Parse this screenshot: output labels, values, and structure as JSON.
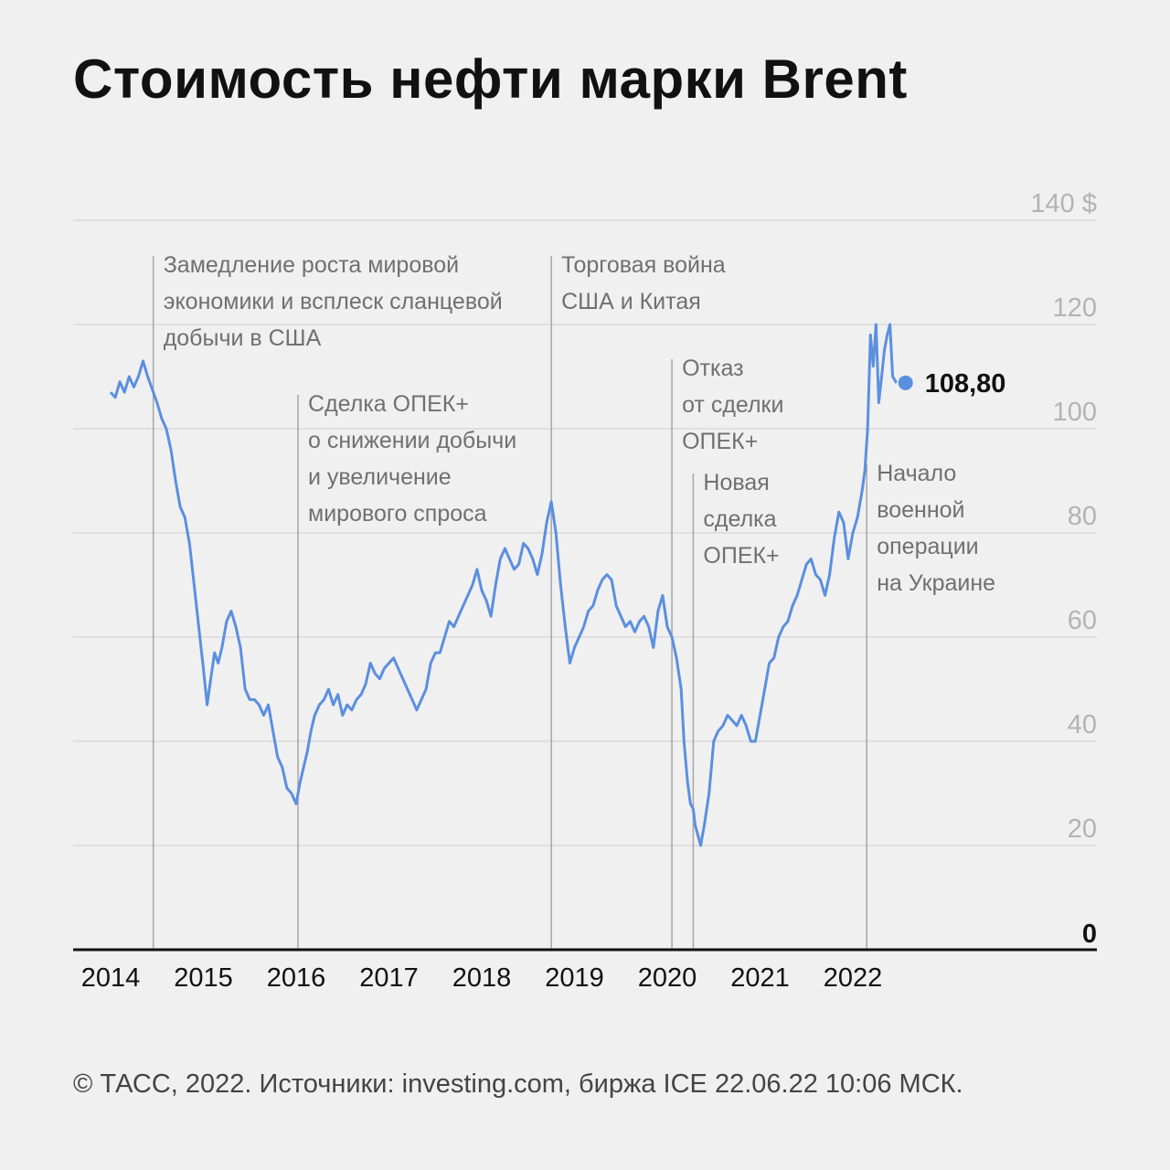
{
  "title": "Стоимость нефти марки Brent",
  "source": "© ТАСС, 2022. Источники: investing.com, биржа ICE 22.06.22 10:06 МСК.",
  "colors": {
    "line": "#5b8fe0",
    "grid": "#d9d9d9",
    "event_line": "#a6a6a6",
    "axis": "#111111"
  },
  "chart_data": {
    "type": "line",
    "ylim": [
      0,
      140
    ],
    "y_ticks": [
      {
        "value": 0,
        "label": "0"
      },
      {
        "value": 20,
        "label": "20"
      },
      {
        "value": 40,
        "label": "40"
      },
      {
        "value": 60,
        "label": "60"
      },
      {
        "value": 80,
        "label": "80"
      },
      {
        "value": 100,
        "label": "100"
      },
      {
        "value": 120,
        "label": "120"
      },
      {
        "value": 140,
        "label": "140 $"
      }
    ],
    "x_ticks": [
      {
        "value": 2014,
        "label": "2014"
      },
      {
        "value": 2015,
        "label": "2015"
      },
      {
        "value": 2016,
        "label": "2016"
      },
      {
        "value": 2017,
        "label": "2017"
      },
      {
        "value": 2018,
        "label": "2018"
      },
      {
        "value": 2019,
        "label": "2019"
      },
      {
        "value": 2020,
        "label": "2020"
      },
      {
        "value": 2021,
        "label": "2021"
      },
      {
        "value": 2022,
        "label": "2022"
      }
    ],
    "grid": true,
    "series": [
      {
        "x": [
          2014.0,
          2014.05,
          2014.1,
          2014.15,
          2014.2,
          2014.25,
          2014.3,
          2014.35,
          2014.4,
          2014.46,
          2014.5,
          2014.55,
          2014.6,
          2014.65,
          2014.7,
          2014.75,
          2014.8,
          2014.85,
          2014.9,
          2014.95,
          2015.0,
          2015.04,
          2015.08,
          2015.12,
          2015.16,
          2015.2,
          2015.25,
          2015.3,
          2015.35,
          2015.4,
          2015.45,
          2015.5,
          2015.55,
          2015.6,
          2015.65,
          2015.7,
          2015.75,
          2015.8,
          2015.85,
          2015.9,
          2015.95,
          2016.0,
          2016.04,
          2016.08,
          2016.12,
          2016.16,
          2016.2,
          2016.25,
          2016.3,
          2016.35,
          2016.4,
          2016.45,
          2016.5,
          2016.55,
          2016.6,
          2016.65,
          2016.7,
          2016.75,
          2016.8,
          2016.85,
          2016.9,
          2016.95,
          2017.0,
          2017.05,
          2017.1,
          2017.15,
          2017.2,
          2017.25,
          2017.3,
          2017.35,
          2017.4,
          2017.45,
          2017.5,
          2017.55,
          2017.6,
          2017.65,
          2017.7,
          2017.75,
          2017.8,
          2017.85,
          2017.9,
          2017.95,
          2018.0,
          2018.05,
          2018.1,
          2018.15,
          2018.2,
          2018.25,
          2018.3,
          2018.35,
          2018.4,
          2018.45,
          2018.5,
          2018.55,
          2018.6,
          2018.65,
          2018.7,
          2018.75,
          2018.8,
          2018.85,
          2018.9,
          2018.95,
          2019.0,
          2019.05,
          2019.1,
          2019.15,
          2019.2,
          2019.25,
          2019.3,
          2019.35,
          2019.4,
          2019.45,
          2019.5,
          2019.55,
          2019.6,
          2019.65,
          2019.7,
          2019.75,
          2019.8,
          2019.85,
          2019.9,
          2019.95,
          2020.0,
          2020.05,
          2020.1,
          2020.15,
          2020.18,
          2020.22,
          2020.25,
          2020.28,
          2020.3,
          2020.33,
          2020.36,
          2020.4,
          2020.45,
          2020.5,
          2020.55,
          2020.6,
          2020.65,
          2020.7,
          2020.75,
          2020.8,
          2020.85,
          2020.9,
          2020.95,
          2021.0,
          2021.05,
          2021.1,
          2021.15,
          2021.2,
          2021.25,
          2021.3,
          2021.35,
          2021.4,
          2021.45,
          2021.5,
          2021.55,
          2021.6,
          2021.65,
          2021.7,
          2021.75,
          2021.8,
          2021.85,
          2021.9,
          2021.95,
          2022.0,
          2022.05,
          2022.1,
          2022.13,
          2022.16,
          2022.19,
          2022.22,
          2022.25,
          2022.28,
          2022.31,
          2022.34,
          2022.37,
          2022.4,
          2022.43,
          2022.47
        ],
        "y": [
          107,
          106,
          109,
          107,
          110,
          108,
          110,
          113,
          110,
          107,
          105,
          102,
          100,
          96,
          90,
          85,
          83,
          78,
          70,
          62,
          54,
          47,
          52,
          57,
          55,
          58,
          63,
          65,
          62,
          58,
          50,
          48,
          48,
          47,
          45,
          47,
          42,
          37,
          35,
          31,
          30,
          28,
          32,
          35,
          38,
          42,
          45,
          47,
          48,
          50,
          47,
          49,
          45,
          47,
          46,
          48,
          49,
          51,
          55,
          53,
          52,
          54,
          55,
          56,
          54,
          52,
          50,
          48,
          46,
          48,
          50,
          55,
          57,
          57,
          60,
          63,
          62,
          64,
          66,
          68,
          70,
          73,
          69,
          67,
          64,
          70,
          75,
          77,
          75,
          73,
          74,
          78,
          77,
          75,
          72,
          76,
          82,
          86,
          80,
          70,
          62,
          55,
          58,
          60,
          62,
          65,
          66,
          69,
          71,
          72,
          71,
          66,
          64,
          62,
          63,
          61,
          63,
          64,
          62,
          58,
          65,
          68,
          62,
          60,
          56,
          50,
          40,
          32,
          28,
          27,
          24,
          22,
          20,
          24,
          30,
          40,
          42,
          43,
          45,
          44,
          43,
          45,
          43,
          40,
          40,
          45,
          50,
          55,
          56,
          60,
          62,
          63,
          66,
          68,
          71,
          74,
          75,
          72,
          71,
          68,
          72,
          79,
          84,
          82,
          75,
          80,
          83,
          88,
          92,
          100,
          118,
          112,
          120,
          105,
          110,
          115,
          118,
          120,
          110,
          108.8
        ]
      }
    ],
    "last_value": {
      "x": 2022.47,
      "y": 108.8,
      "label": "108,80"
    },
    "annotations": [
      {
        "x": 2014.46,
        "lines": [
          "Замедление роста мировой",
          "экономики и всплеск сланцевой",
          "добычи в США"
        ]
      },
      {
        "x": 2016.02,
        "lines": [
          "Сделка ОПЕК+",
          "о снижении добычи",
          "и увеличение",
          "мирового спроса"
        ]
      },
      {
        "x": 2018.75,
        "lines": [
          "Торговая война",
          "США и Китая"
        ]
      },
      {
        "x": 2020.05,
        "lines": [
          "Отказ",
          "от сделки",
          "ОПЕК+"
        ]
      },
      {
        "x": 2020.28,
        "lines": [
          "Новая",
          "сделка",
          "ОПЕК+"
        ]
      },
      {
        "x": 2022.15,
        "lines": [
          "Начало",
          "военной",
          "операции",
          "на Украине"
        ]
      }
    ]
  }
}
